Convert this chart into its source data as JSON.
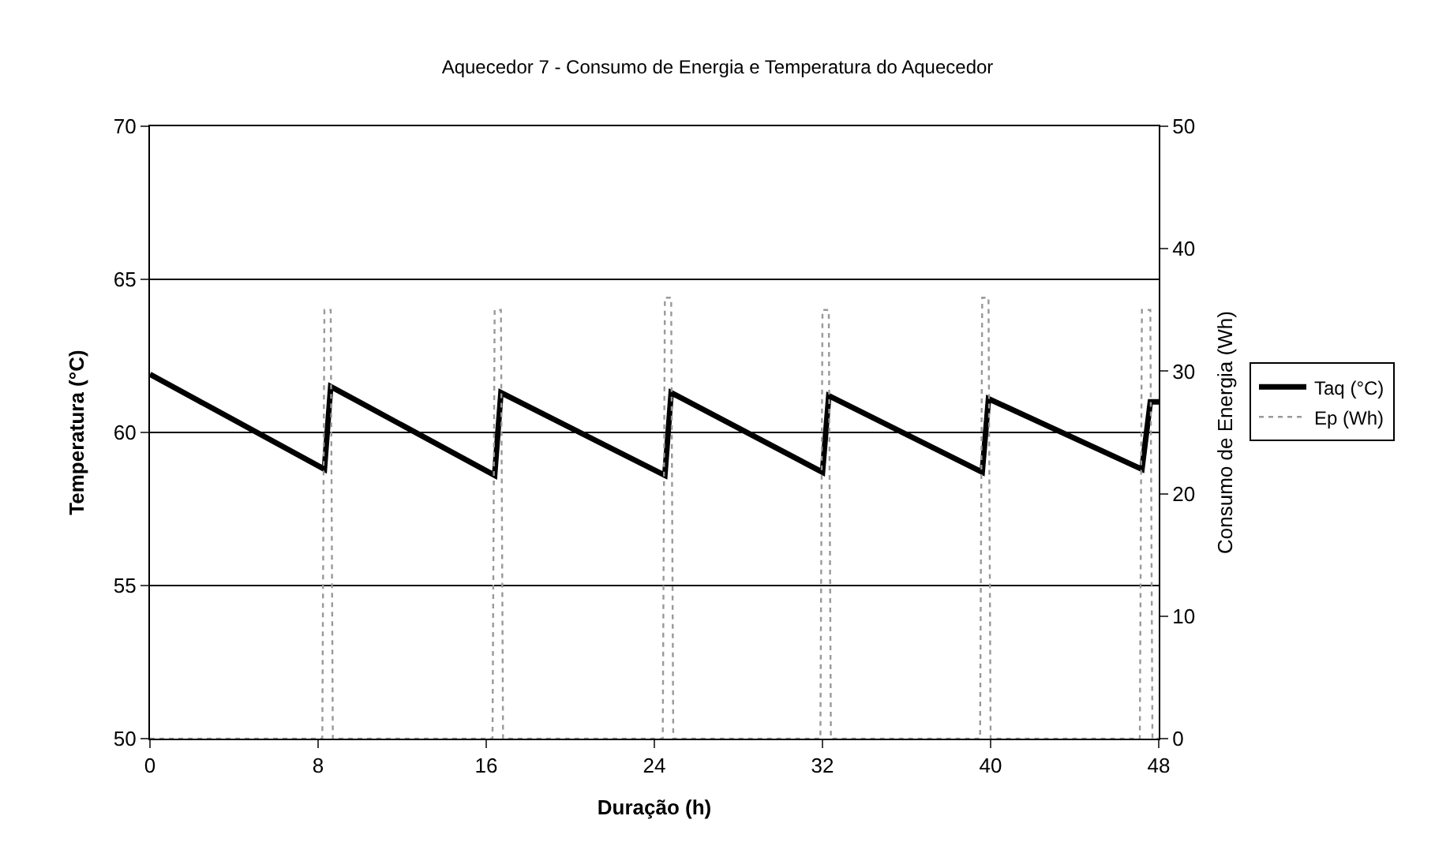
{
  "chart_data": {
    "type": "line",
    "title": "Aquecedor 7 - Consumo de Energia e Temperatura do Aquecedor",
    "xlabel": "Duração (h)",
    "ylabel": "Temperatura (°C)",
    "y2label": "Consumo de Energia (Wh)",
    "xlim": [
      0,
      48
    ],
    "xticks": [
      0,
      8,
      16,
      24,
      32,
      40,
      48
    ],
    "ylim": [
      50,
      70
    ],
    "yticks": [
      50,
      55,
      60,
      65,
      70
    ],
    "y2lim": [
      0,
      50
    ],
    "y2ticks": [
      0,
      10,
      20,
      30,
      40,
      50
    ],
    "grid": "y",
    "legend": "right",
    "marker": "none",
    "series": [
      {
        "name": "Taq (°C)",
        "color": "#000000",
        "line_style": "solid",
        "x": [
          0,
          8.3,
          8.6,
          16.4,
          16.7,
          24.5,
          24.8,
          32.0,
          32.3,
          39.6,
          39.9,
          47.2,
          47.6,
          48
        ],
        "values": [
          61.9,
          58.8,
          61.5,
          58.6,
          61.3,
          58.6,
          61.3,
          58.7,
          61.2,
          58.7,
          61.1,
          58.8,
          61.0,
          61.0
        ]
      },
      {
        "name": "Ep (Wh)",
        "color": "#999999",
        "line_style": "dotted",
        "axis": "y2",
        "x": [
          0,
          8.2,
          8.3,
          8.6,
          8.7,
          16.3,
          16.4,
          16.7,
          16.8,
          24.4,
          24.5,
          24.8,
          24.9,
          31.9,
          32.0,
          32.3,
          32.4,
          39.5,
          39.6,
          39.9,
          40.0,
          47.1,
          47.2,
          47.6,
          47.7,
          48
        ],
        "values": [
          0,
          0,
          35,
          35,
          0,
          0,
          35,
          35,
          0,
          0,
          36,
          36,
          0,
          0,
          35,
          35,
          0,
          0,
          36,
          36,
          0,
          0,
          35,
          35,
          0,
          0
        ]
      }
    ]
  }
}
